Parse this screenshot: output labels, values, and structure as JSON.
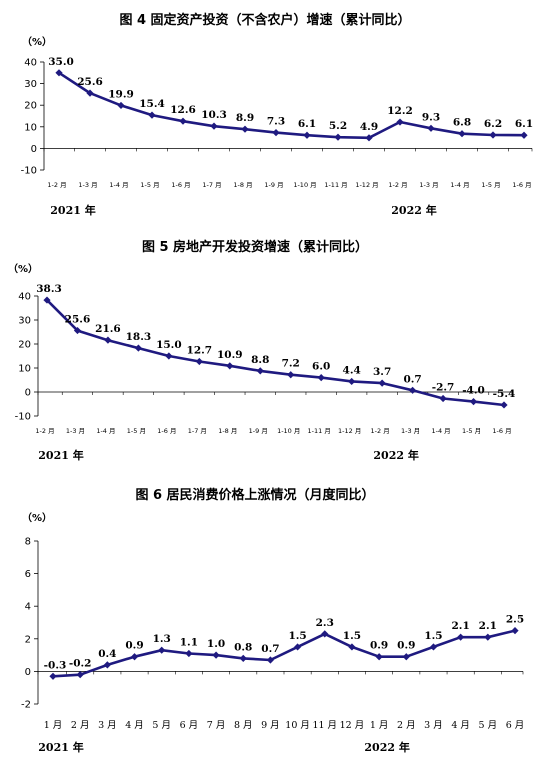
{
  "chart_data": [
    {
      "type": "line",
      "title": "图 4   固定资产投资（不含农户）增速（累计同比）",
      "yunit": "（%）",
      "ylim": [
        -10,
        40
      ],
      "yticks": [
        -10,
        0,
        10,
        20,
        30,
        40
      ],
      "categories": [
        "1-2 月",
        "1-3 月",
        "1-4 月",
        "1-5 月",
        "1-6 月",
        "1-7 月",
        "1-8 月",
        "1-9 月",
        "1-10 月",
        "1-11 月",
        "1-12 月",
        "1-2 月",
        "1-3 月",
        "1-4 月",
        "1-5 月",
        "1-6 月"
      ],
      "values": [
        35.0,
        25.6,
        19.9,
        15.4,
        12.6,
        10.3,
        8.9,
        7.3,
        6.1,
        5.2,
        4.9,
        12.2,
        9.3,
        6.8,
        6.2,
        6.1
      ],
      "data_labels": [
        "35.0",
        "25.6",
        "19.9",
        "15.4",
        "12.6",
        "10.3",
        "8.9",
        "7.3",
        "6.1",
        "5.2",
        "4.9",
        "12.2",
        "9.3",
        "6.8",
        "6.2",
        "6.1"
      ],
      "years": [
        {
          "label": "2021 年",
          "index": 0
        },
        {
          "label": "2022 年",
          "index": 11
        }
      ],
      "line_color": "#1f1a80",
      "grid": false
    },
    {
      "type": "line",
      "title": "图 5   房地产开发投资增速（累计同比）",
      "yunit": "（%）",
      "ylim": [
        -10,
        40
      ],
      "yticks": [
        -10,
        0,
        10,
        20,
        30,
        40
      ],
      "categories": [
        "1-2 月",
        "1-3 月",
        "1-4 月",
        "1-5 月",
        "1-6 月",
        "1-7 月",
        "1-8 月",
        "1-9 月",
        "1-10 月",
        "1-11 月",
        "1-12 月",
        "1-2 月",
        "1-3 月",
        "1-4 月",
        "1-5 月",
        "1-6 月"
      ],
      "values": [
        38.3,
        25.6,
        21.6,
        18.3,
        15.0,
        12.7,
        10.9,
        8.8,
        7.2,
        6.0,
        4.4,
        3.7,
        0.7,
        -2.7,
        -4.0,
        -5.4
      ],
      "data_labels": [
        "38.3",
        "25.6",
        "21.6",
        "18.3",
        "15.0",
        "12.7",
        "10.9",
        "8.8",
        "7.2",
        "6.0",
        "4.4",
        "3.7",
        "0.7",
        "-2.7",
        "-4.0",
        "-5.4"
      ],
      "years": [
        {
          "label": "2021 年",
          "index": 0
        },
        {
          "label": "2022 年",
          "index": 11
        }
      ],
      "line_color": "#1f1a80",
      "grid": false
    },
    {
      "type": "line",
      "title": "图 6   居民消费价格上涨情况（月度同比）",
      "yunit": "（%）",
      "ylim": [
        -2,
        8
      ],
      "yticks": [
        -2,
        0,
        2,
        4,
        6,
        8
      ],
      "categories": [
        "1 月",
        "2 月",
        "3 月",
        "4 月",
        "5 月",
        "6 月",
        "7 月",
        "8 月",
        "9 月",
        "10 月",
        "11 月",
        "12 月",
        "1 月",
        "2 月",
        "3 月",
        "4 月",
        "5 月",
        "6 月"
      ],
      "values": [
        -0.3,
        -0.2,
        0.4,
        0.9,
        1.3,
        1.1,
        1.0,
        0.8,
        0.7,
        1.5,
        2.3,
        1.5,
        0.9,
        0.9,
        1.5,
        2.1,
        2.1,
        2.5
      ],
      "data_labels": [
        "-0.3",
        "-0.2",
        "0.4",
        "0.9",
        "1.3",
        "1.1",
        "1.0",
        "0.8",
        "0.7",
        "1.5",
        "2.3",
        "1.5",
        "0.9",
        "0.9",
        "1.5",
        "2.1",
        "2.1",
        "2.5"
      ],
      "years": [
        {
          "label": "2021 年",
          "index": 0
        },
        {
          "label": "2022 年",
          "index": 12
        }
      ],
      "line_color": "#1f1a80",
      "grid": false
    }
  ]
}
